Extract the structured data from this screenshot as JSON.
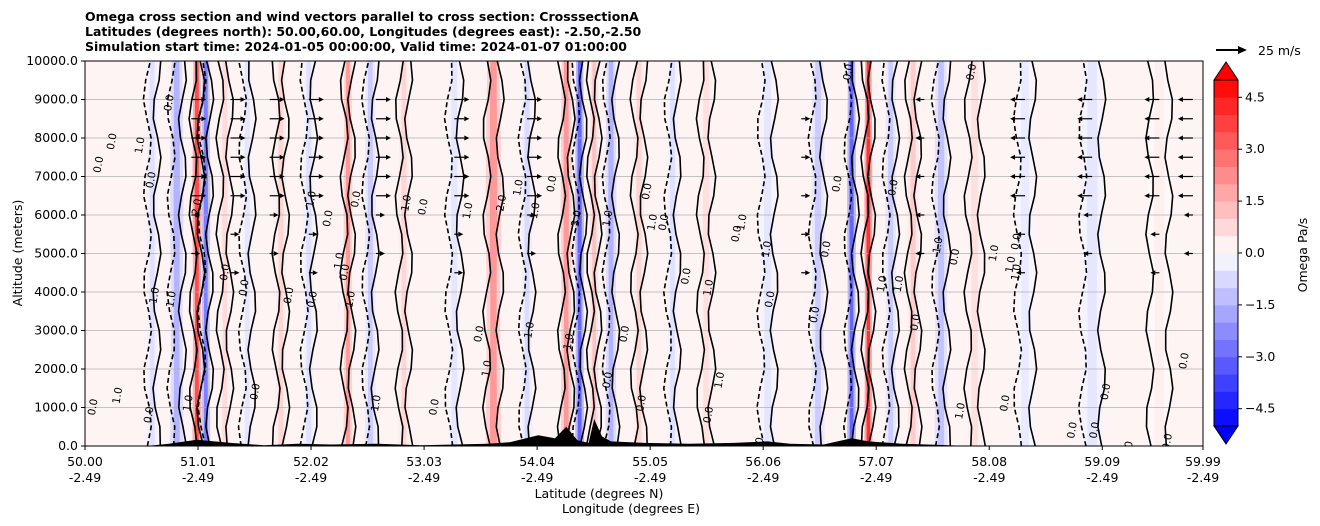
{
  "chart_data": {
    "type": "heatmap",
    "title_lines": [
      "Omega cross section and wind vectors parallel to cross section: CrosssectionA",
      "Latitudes (degrees north): 50.00,60.00, Longitudes (degrees east): -2.50,-2.50",
      "Simulation start time: 2024-01-05 00:00:00, Valid time: 2024-01-07 01:00:00"
    ],
    "xlabel_1": "Latitude (degrees N)",
    "xlabel_2": "Longitude (degrees E)",
    "ylabel": "Altitude (meters)",
    "x_range": [
      50.0,
      59.99
    ],
    "ylim": [
      0,
      10000
    ],
    "x_ticks": [
      {
        "lat": "50.00",
        "lon": "-2.49",
        "value": 50.0
      },
      {
        "lat": "51.01",
        "lon": "-2.49",
        "value": 51.01
      },
      {
        "lat": "52.02",
        "lon": "-2.49",
        "value": 52.02
      },
      {
        "lat": "53.03",
        "lon": "-2.49",
        "value": 53.03
      },
      {
        "lat": "54.04",
        "lon": "-2.49",
        "value": 54.04
      },
      {
        "lat": "55.05",
        "lon": "-2.49",
        "value": 55.05
      },
      {
        "lat": "56.06",
        "lon": "-2.49",
        "value": 56.06
      },
      {
        "lat": "57.07",
        "lon": "-2.49",
        "value": 57.07
      },
      {
        "lat": "58.08",
        "lon": "-2.49",
        "value": 58.08
      },
      {
        "lat": "59.09",
        "lon": "-2.49",
        "value": 59.09
      },
      {
        "lat": "59.99",
        "lon": "-2.49",
        "value": 59.99
      }
    ],
    "y_ticks": [
      {
        "label": "0.0",
        "value": 0
      },
      {
        "label": "1000.0",
        "value": 1000
      },
      {
        "label": "2000.0",
        "value": 2000
      },
      {
        "label": "3000.0",
        "value": 3000
      },
      {
        "label": "4000.0",
        "value": 4000
      },
      {
        "label": "5000.0",
        "value": 5000
      },
      {
        "label": "6000.0",
        "value": 6000
      },
      {
        "label": "7000.0",
        "value": 7000
      },
      {
        "label": "8000.0",
        "value": 8000
      },
      {
        "label": "9000.0",
        "value": 9000
      },
      {
        "label": "10000.0",
        "value": 10000
      }
    ],
    "grid": true,
    "colorbar": {
      "label": "Omega Pa/s",
      "range": [
        -5.0,
        5.0
      ],
      "levels_step": 0.5,
      "ticks": [
        {
          "label": "4.5",
          "value": 4.5
        },
        {
          "label": "3.0",
          "value": 3.0
        },
        {
          "label": "1.5",
          "value": 1.5
        },
        {
          "label": "0.0",
          "value": 0.0
        },
        {
          "label": "−1.5",
          "value": -1.5
        },
        {
          "label": "−3.0",
          "value": -3.0
        },
        {
          "label": "−4.5",
          "value": -4.5
        }
      ],
      "cmap": "bwr",
      "extend": "both",
      "color_low": "#0000ff",
      "color_high": "#ff0000"
    },
    "quiver_key": {
      "label": "25 m/s",
      "value": 25
    },
    "bands": [
      {
        "lat": 50.6,
        "omega": -0.6,
        "width": 0.05
      },
      {
        "lat": 50.82,
        "omega": -1.5,
        "width": 0.06
      },
      {
        "lat": 51.0,
        "omega": 3.5,
        "width": 0.04
      },
      {
        "lat": 51.08,
        "omega": -2.5,
        "width": 0.04
      },
      {
        "lat": 51.25,
        "omega": 0.7,
        "width": 0.05
      },
      {
        "lat": 51.45,
        "omega": -0.5,
        "width": 0.05
      },
      {
        "lat": 51.75,
        "omega": 0.8,
        "width": 0.05
      },
      {
        "lat": 52.0,
        "omega": -0.6,
        "width": 0.05
      },
      {
        "lat": 52.35,
        "omega": 2.0,
        "width": 0.04
      },
      {
        "lat": 52.55,
        "omega": -1.0,
        "width": 0.05
      },
      {
        "lat": 52.85,
        "omega": 0.8,
        "width": 0.05
      },
      {
        "lat": 53.3,
        "omega": -0.5,
        "width": 0.06
      },
      {
        "lat": 53.65,
        "omega": 2.0,
        "width": 0.07
      },
      {
        "lat": 53.95,
        "omega": -0.7,
        "width": 0.05
      },
      {
        "lat": 54.3,
        "omega": 2.0,
        "width": 0.05
      },
      {
        "lat": 54.42,
        "omega": -3.0,
        "width": 0.04
      },
      {
        "lat": 54.55,
        "omega": 1.2,
        "width": 0.04
      },
      {
        "lat": 54.7,
        "omega": -1.5,
        "width": 0.05
      },
      {
        "lat": 54.95,
        "omega": 0.8,
        "width": 0.05
      },
      {
        "lat": 55.25,
        "omega": -0.6,
        "width": 0.05
      },
      {
        "lat": 55.55,
        "omega": 0.6,
        "width": 0.06
      },
      {
        "lat": 56.1,
        "omega": -0.5,
        "width": 0.07
      },
      {
        "lat": 56.55,
        "omega": -1.0,
        "width": 0.06
      },
      {
        "lat": 56.85,
        "omega": -3.0,
        "width": 0.04
      },
      {
        "lat": 57.0,
        "omega": 4.0,
        "width": 0.03
      },
      {
        "lat": 57.2,
        "omega": -1.0,
        "width": 0.05
      },
      {
        "lat": 57.4,
        "omega": 1.0,
        "width": 0.05
      },
      {
        "lat": 57.65,
        "omega": -1.2,
        "width": 0.06
      },
      {
        "lat": 57.95,
        "omega": 0.6,
        "width": 0.07
      },
      {
        "lat": 58.4,
        "omega": -0.4,
        "width": 0.08
      },
      {
        "lat": 59.0,
        "omega": -0.5,
        "width": 0.1
      },
      {
        "lat": 59.6,
        "omega": 0.3,
        "width": 0.1
      }
    ],
    "contour_labels": [
      {
        "text": "0.0",
        "lat": 50.15,
        "alt": 7400
      },
      {
        "text": "0.0",
        "lat": 50.27,
        "alt": 8000
      },
      {
        "text": "1.0",
        "lat": 50.52,
        "alt": 7900
      },
      {
        "text": "0.0",
        "lat": 50.62,
        "alt": 7000
      },
      {
        "text": "0.0",
        "lat": 50.78,
        "alt": 9000
      },
      {
        "text": "1.0",
        "lat": 50.65,
        "alt": 4000
      },
      {
        "text": "1.0",
        "lat": 50.8,
        "alt": 3900
      },
      {
        "text": "0.0",
        "lat": 50.1,
        "alt": 1100
      },
      {
        "text": "1.0",
        "lat": 50.32,
        "alt": 1400
      },
      {
        "text": "0.0",
        "lat": 50.6,
        "alt": 900
      },
      {
        "text": "1.0",
        "lat": 50.95,
        "alt": 1200
      },
      {
        "text": "2.0",
        "lat": 51.03,
        "alt": 6300
      },
      {
        "text": "0.0",
        "lat": 51.28,
        "alt": 4600
      },
      {
        "text": "0.0",
        "lat": 51.45,
        "alt": 4200
      },
      {
        "text": "0.0",
        "lat": 51.55,
        "alt": 1500
      },
      {
        "text": "0.0",
        "lat": 51.85,
        "alt": 4000
      },
      {
        "text": "0.0",
        "lat": 52.06,
        "alt": 3900
      },
      {
        "text": "1.0",
        "lat": 52.05,
        "alt": 6500
      },
      {
        "text": "0.0",
        "lat": 52.2,
        "alt": 6000
      },
      {
        "text": "1.0",
        "lat": 52.3,
        "alt": 4900
      },
      {
        "text": "0.0",
        "lat": 52.35,
        "alt": 4600
      },
      {
        "text": "1.0",
        "lat": 52.4,
        "alt": 3900
      },
      {
        "text": "0.0",
        "lat": 52.45,
        "alt": 6500
      },
      {
        "text": "1.0",
        "lat": 52.63,
        "alt": 1200
      },
      {
        "text": "1.0",
        "lat": 52.9,
        "alt": 6400
      },
      {
        "text": "0.0",
        "lat": 53.05,
        "alt": 6300
      },
      {
        "text": "0.0",
        "lat": 53.15,
        "alt": 1100
      },
      {
        "text": "1.0",
        "lat": 53.45,
        "alt": 6200
      },
      {
        "text": "0.0",
        "lat": 53.55,
        "alt": 3000
      },
      {
        "text": "1.0",
        "lat": 53.62,
        "alt": 2100
      },
      {
        "text": "2.0",
        "lat": 53.75,
        "alt": 6400
      },
      {
        "text": "1.0",
        "lat": 53.9,
        "alt": 6800
      },
      {
        "text": "1.0",
        "lat": 54.05,
        "alt": 6200
      },
      {
        "text": "0.0",
        "lat": 54.2,
        "alt": 6900
      },
      {
        "text": "1.0",
        "lat": 54.0,
        "alt": 3100
      },
      {
        "text": "1.0",
        "lat": 54.35,
        "alt": 2800
      },
      {
        "text": "3.0",
        "lat": 54.42,
        "alt": 6000
      },
      {
        "text": "1.0",
        "lat": 54.7,
        "alt": 6000
      },
      {
        "text": "0.0",
        "lat": 54.85,
        "alt": 3000
      },
      {
        "text": "0.0",
        "lat": 54.7,
        "alt": 1800
      },
      {
        "text": "0.0",
        "lat": 55.0,
        "alt": 1200
      },
      {
        "text": "0.0",
        "lat": 55.05,
        "alt": 6700
      },
      {
        "text": "1.0",
        "lat": 55.1,
        "alt": 5900
      },
      {
        "text": "0.0",
        "lat": 55.2,
        "alt": 5900
      },
      {
        "text": "0.0",
        "lat": 55.4,
        "alt": 4500
      },
      {
        "text": "1.0",
        "lat": 55.6,
        "alt": 4200
      },
      {
        "text": "1.0",
        "lat": 55.7,
        "alt": 1800
      },
      {
        "text": "0.0",
        "lat": 55.6,
        "alt": 900
      },
      {
        "text": "0.0",
        "lat": 55.85,
        "alt": 5600
      },
      {
        "text": "1.0",
        "lat": 55.9,
        "alt": 5900
      },
      {
        "text": "1.0",
        "lat": 56.12,
        "alt": 5200
      },
      {
        "text": "0.0",
        "lat": 56.15,
        "alt": 3900
      },
      {
        "text": "0.0",
        "lat": 56.05,
        "alt": 100
      },
      {
        "text": "0.0",
        "lat": 56.55,
        "alt": 3500
      },
      {
        "text": "0.0",
        "lat": 56.65,
        "alt": 5200
      },
      {
        "text": "0.0",
        "lat": 56.75,
        "alt": 6900
      },
      {
        "text": "0.0",
        "lat": 56.85,
        "alt": 9800
      },
      {
        "text": "1.0",
        "lat": 57.15,
        "alt": 4300
      },
      {
        "text": "1.0",
        "lat": 57.3,
        "alt": 4300
      },
      {
        "text": "0.0",
        "lat": 57.45,
        "alt": 3300
      },
      {
        "text": "0.0",
        "lat": 57.25,
        "alt": 6800
      },
      {
        "text": "0.0",
        "lat": 57.8,
        "alt": 5000
      },
      {
        "text": "1.0",
        "lat": 57.65,
        "alt": 5300
      },
      {
        "text": "1.0",
        "lat": 58.15,
        "alt": 5100
      },
      {
        "text": "0.0",
        "lat": 58.35,
        "alt": 5400
      },
      {
        "text": "1.0",
        "lat": 58.3,
        "alt": 4800
      },
      {
        "text": "0.0",
        "lat": 58.25,
        "alt": 1200
      },
      {
        "text": "1.0",
        "lat": 57.85,
        "alt": 1000
      },
      {
        "text": "0.0",
        "lat": 57.95,
        "alt": 9800
      },
      {
        "text": "0.0",
        "lat": 58.85,
        "alt": 500
      },
      {
        "text": "0.0",
        "lat": 59.15,
        "alt": 1500
      },
      {
        "text": "0.0",
        "lat": 59.05,
        "alt": 500
      },
      {
        "text": "0.0",
        "lat": 59.35,
        "alt": 0
      },
      {
        "text": "0.0",
        "lat": 59.7,
        "alt": 200
      },
      {
        "text": "0.0",
        "lat": 59.85,
        "alt": 2300
      },
      {
        "text": "1.0",
        "lat": 58.35,
        "alt": 4600
      }
    ]
  }
}
